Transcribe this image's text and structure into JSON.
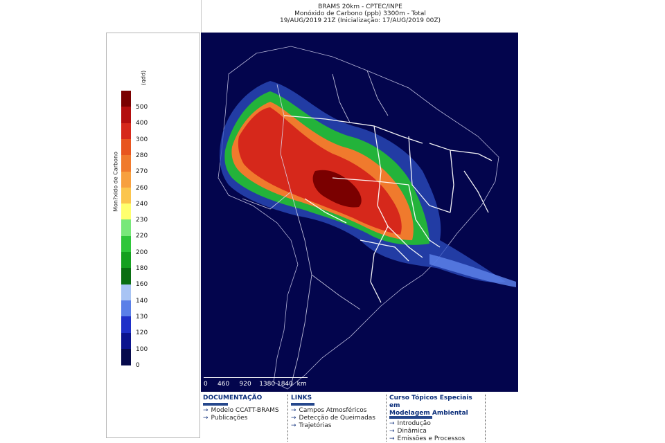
{
  "header": {
    "line1": "BRAMS 20km - CPTEC/INPE",
    "line2": "Monóxido de Carbono (ppb) 3300m - Total",
    "line3": "19/AUG/2019 21Z (Inicialização: 17/AUG/2019 00Z)"
  },
  "legend": {
    "unit": "(ppb)",
    "title": "Mon?xido de Carbono",
    "levels": [
      {
        "label": "500",
        "color": "#7a0000"
      },
      {
        "label": "400",
        "color": "#b30e0e"
      },
      {
        "label": "300",
        "color": "#d6281b"
      },
      {
        "label": "280",
        "color": "#e8551f"
      },
      {
        "label": "270",
        "color": "#f07a2d"
      },
      {
        "label": "260",
        "color": "#f7a03f"
      },
      {
        "label": "240",
        "color": "#fbc54d"
      },
      {
        "label": "230",
        "color": "#ffff6e"
      },
      {
        "label": "220",
        "color": "#78e87a"
      },
      {
        "label": "200",
        "color": "#2ec63a"
      },
      {
        "label": "180",
        "color": "#14a01f"
      },
      {
        "label": "160",
        "color": "#0a6e12"
      },
      {
        "label": "140",
        "color": "#a8c4f4"
      },
      {
        "label": "130",
        "color": "#5a7fe8"
      },
      {
        "label": "120",
        "color": "#1f30c8"
      },
      {
        "label": "100",
        "color": "#0b138e"
      },
      {
        "label": "0",
        "color": "#060a4c"
      }
    ],
    "bottom_color": "#040836"
  },
  "map": {
    "background": "#03054d",
    "scale_labels": [
      "0",
      "460",
      "920",
      "1380",
      "1840",
      "km"
    ]
  },
  "footer": {
    "documentacao": {
      "title": "DOCUMENTAÇÃO",
      "items": [
        "Modelo CCATT-BRAMS",
        "Publicações"
      ]
    },
    "links": {
      "title": "LINKS",
      "items": [
        "Campos Atmosféricos",
        "Detecção de Queimadas",
        "Trajetórias"
      ]
    },
    "curso": {
      "title_line1": "Curso Tópicos Especiais em",
      "title_line2": "Modelagem Ambiental",
      "items": [
        "Introdução",
        "Dinâmica",
        "Emissões e Processos"
      ]
    }
  }
}
